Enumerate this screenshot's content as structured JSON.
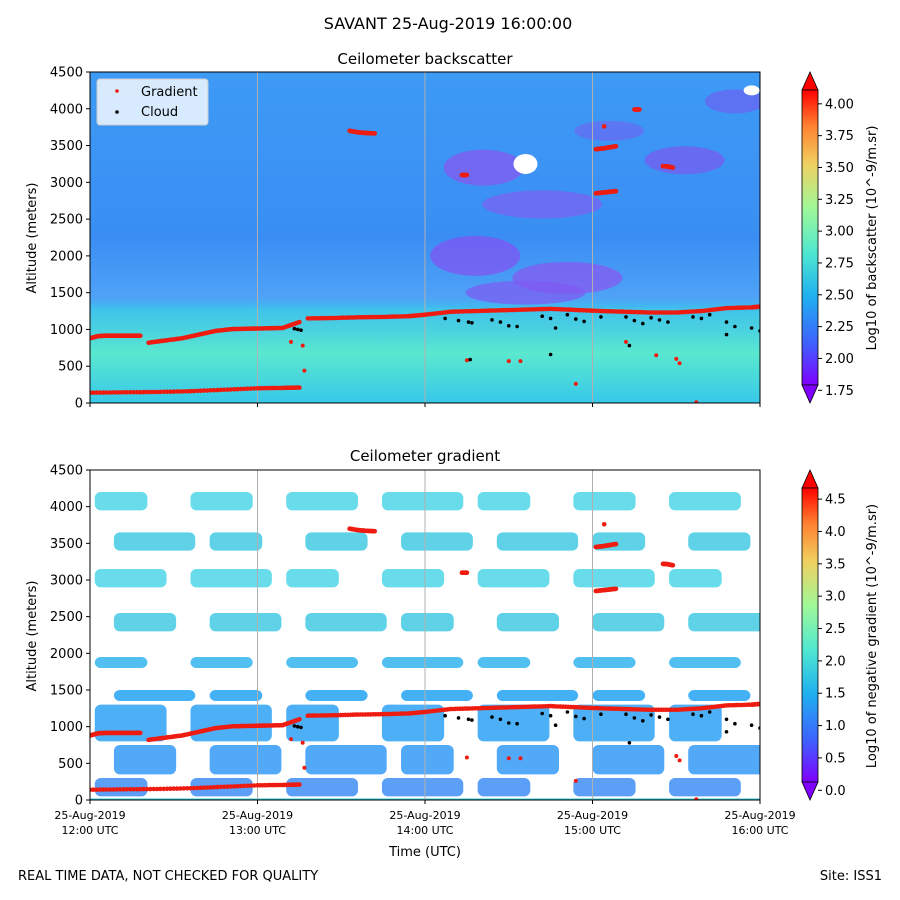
{
  "suptitle": "SAVANT 25-Aug-2019 16:00:00",
  "footer_left": "REAL TIME DATA, NOT CHECKED FOR QUALITY",
  "footer_right": "Site: ISS1",
  "x_axis": {
    "label": "Time (UTC)",
    "tick_dates": [
      "25-Aug-2019",
      "25-Aug-2019",
      "25-Aug-2019",
      "25-Aug-2019",
      "25-Aug-2019"
    ],
    "tick_times": [
      "12:00 UTC",
      "13:00 UTC",
      "14:00 UTC",
      "15:00 UTC",
      "16:00 UTC"
    ],
    "range_hours": [
      12,
      16
    ]
  },
  "legend": {
    "placement": "upper-left",
    "gradient": "Gradient",
    "cloud": "Cloud"
  },
  "colors": {
    "gradient_marker": "#ee1c10",
    "cloud_marker": "#000000",
    "background_field": "#3bb2f0",
    "colormap": [
      "#7f00ff",
      "#3f60ff",
      "#1fb0f0",
      "#50e8d0",
      "#a0f898",
      "#f0d060",
      "#ff8030",
      "#ff0000"
    ]
  },
  "chart_data": [
    {
      "type": "heatmap",
      "title": "Ceilometer backscatter",
      "ylabel": "Altitude (meters)",
      "ylim": [
        0,
        4500
      ],
      "yticks": [
        "0",
        "500",
        "1000",
        "1500",
        "2000",
        "2500",
        "3000",
        "3500",
        "4000",
        "4500"
      ],
      "colorbar": {
        "label": "Log10 of backscatter (10^-9/m.sr)",
        "ticks": [
          "1.75",
          "2.00",
          "2.25",
          "2.50",
          "2.75",
          "3.00",
          "3.25",
          "3.50",
          "3.75",
          "4.00"
        ],
        "range": [
          1.65,
          4.25
        ]
      },
      "gradient_series": [
        {
          "t": [
            12.0,
            12.05,
            12.1,
            12.15,
            12.2,
            12.25,
            12.3
          ],
          "alt": [
            880,
            910,
            915,
            915,
            915,
            915,
            915
          ]
        },
        {
          "t": [
            12.35,
            12.45,
            12.55,
            12.65,
            12.75,
            12.85,
            12.95,
            13.05,
            13.15,
            13.25
          ],
          "alt": [
            820,
            850,
            880,
            930,
            980,
            1005,
            1010,
            1015,
            1020,
            1100
          ]
        },
        {
          "t": [
            13.3,
            13.45,
            13.6,
            13.75,
            13.9,
            14.0,
            14.15,
            14.3,
            14.45,
            14.6,
            14.75,
            14.9,
            15.05,
            15.2,
            15.35,
            15.5,
            15.65,
            15.8,
            15.95,
            16.0
          ],
          "alt": [
            1150,
            1155,
            1165,
            1170,
            1180,
            1200,
            1240,
            1250,
            1260,
            1270,
            1280,
            1265,
            1250,
            1240,
            1230,
            1230,
            1250,
            1290,
            1300,
            1310
          ]
        },
        {
          "t": [
            12.0,
            12.2,
            12.4,
            12.6,
            12.8,
            13.0,
            13.15,
            13.25
          ],
          "alt": [
            140,
            145,
            150,
            160,
            180,
            200,
            205,
            210
          ]
        },
        {
          "t": [
            13.55,
            13.6,
            13.65,
            13.7
          ],
          "alt": [
            3700,
            3680,
            3670,
            3665
          ]
        },
        {
          "t": [
            15.02,
            15.06,
            15.1,
            15.14
          ],
          "alt": [
            3450,
            3460,
            3475,
            3490
          ]
        },
        {
          "t": [
            15.02,
            15.06,
            15.1,
            15.14
          ],
          "alt": [
            2850,
            2860,
            2870,
            2880
          ]
        },
        {
          "t": [
            14.22,
            14.25
          ],
          "alt": [
            3100,
            3100
          ]
        },
        {
          "t": [
            15.42,
            15.45,
            15.48
          ],
          "alt": [
            3220,
            3215,
            3200
          ]
        },
        {
          "t": [
            15.25,
            15.28
          ],
          "alt": [
            3990,
            3990
          ]
        },
        {
          "t": [
            15.07
          ],
          "alt": [
            3760
          ]
        }
      ],
      "gradient_points": {
        "t": [
          13.2,
          13.27,
          13.28,
          14.25,
          14.5,
          14.57,
          14.9,
          15.2,
          15.38,
          15.5,
          15.52,
          15.62
        ],
        "alt": [
          830,
          780,
          440,
          580,
          570,
          570,
          260,
          830,
          650,
          600,
          540,
          10
        ]
      },
      "cloud_points": {
        "t": [
          13.22,
          13.24,
          13.26,
          14.12,
          14.2,
          14.26,
          14.28,
          14.4,
          14.45,
          14.5,
          14.55,
          14.7,
          14.75,
          14.78,
          14.85,
          14.9,
          14.95,
          15.2,
          15.25,
          15.3,
          15.35,
          15.4,
          15.45,
          15.6,
          15.65,
          15.7,
          15.8,
          15.85,
          15.95,
          16.0,
          14.27,
          14.75,
          15.22,
          15.8,
          15.05
        ],
        "alt": [
          1010,
          1000,
          990,
          1150,
          1120,
          1100,
          1090,
          1130,
          1100,
          1050,
          1040,
          1180,
          1150,
          1020,
          1200,
          1140,
          1110,
          1170,
          1120,
          1080,
          1160,
          1130,
          1100,
          1170,
          1150,
          1200,
          1100,
          1040,
          1020,
          980,
          590,
          660,
          780,
          930,
          1170
        ]
      }
    },
    {
      "type": "heatmap",
      "title": "Ceilometer gradient",
      "ylabel": "Altitude (meters)",
      "xlabel": "Time (UTC)",
      "ylim": [
        0,
        4500
      ],
      "yticks": [
        "0",
        "500",
        "1000",
        "1500",
        "2000",
        "2500",
        "3000",
        "3500",
        "4000",
        "4500"
      ],
      "colorbar": {
        "label": "Log10 of negative gradient (10^-9/m.sr)",
        "ticks": [
          "0.0",
          "0.5",
          "1.0",
          "1.5",
          "2.0",
          "2.5",
          "3.0",
          "3.5",
          "4.0",
          "4.5"
        ],
        "range": [
          -0.15,
          4.95
        ]
      },
      "gradient_series": [
        {
          "t": [
            12.0,
            12.05,
            12.1,
            12.15,
            12.2,
            12.25,
            12.3
          ],
          "alt": [
            880,
            910,
            915,
            915,
            915,
            915,
            915
          ]
        },
        {
          "t": [
            12.35,
            12.45,
            12.55,
            12.65,
            12.75,
            12.85,
            12.95,
            13.05,
            13.15,
            13.25
          ],
          "alt": [
            820,
            850,
            880,
            930,
            980,
            1005,
            1010,
            1015,
            1020,
            1100
          ]
        },
        {
          "t": [
            13.3,
            13.45,
            13.6,
            13.75,
            13.9,
            14.0,
            14.15,
            14.3,
            14.45,
            14.6,
            14.75,
            14.9,
            15.05,
            15.2,
            15.35,
            15.5,
            15.65,
            15.8,
            15.95,
            16.0
          ],
          "alt": [
            1150,
            1155,
            1165,
            1170,
            1180,
            1200,
            1240,
            1250,
            1260,
            1270,
            1280,
            1265,
            1250,
            1240,
            1230,
            1230,
            1250,
            1290,
            1300,
            1310
          ]
        },
        {
          "t": [
            12.0,
            12.2,
            12.4,
            12.6,
            12.8,
            13.0,
            13.15,
            13.25
          ],
          "alt": [
            140,
            145,
            150,
            160,
            180,
            200,
            205,
            210
          ]
        },
        {
          "t": [
            13.55,
            13.6,
            13.65,
            13.7
          ],
          "alt": [
            3700,
            3680,
            3670,
            3665
          ]
        },
        {
          "t": [
            15.02,
            15.06,
            15.1,
            15.14
          ],
          "alt": [
            3450,
            3460,
            3475,
            3490
          ]
        },
        {
          "t": [
            15.02,
            15.06,
            15.1,
            15.14
          ],
          "alt": [
            2850,
            2860,
            2870,
            2880
          ]
        },
        {
          "t": [
            14.22,
            14.25
          ],
          "alt": [
            3100,
            3100
          ]
        },
        {
          "t": [
            15.42,
            15.45,
            15.48
          ],
          "alt": [
            3220,
            3215,
            3200
          ]
        },
        {
          "t": [
            15.07
          ],
          "alt": [
            3760
          ]
        }
      ],
      "gradient_points": {
        "t": [
          13.2,
          13.27,
          13.28,
          14.25,
          14.5,
          14.57,
          14.9,
          15.5,
          15.52,
          15.62
        ],
        "alt": [
          830,
          780,
          440,
          580,
          570,
          570,
          260,
          600,
          540,
          10
        ]
      },
      "cloud_points": {
        "t": [
          13.22,
          13.24,
          13.26,
          14.12,
          14.2,
          14.26,
          14.28,
          14.4,
          14.45,
          14.5,
          14.55,
          14.7,
          14.75,
          14.78,
          14.85,
          14.9,
          14.95,
          15.2,
          15.25,
          15.3,
          15.35,
          15.4,
          15.45,
          15.6,
          15.65,
          15.7,
          15.8,
          15.85,
          15.95,
          16.0,
          15.22,
          15.8,
          15.05
        ],
        "alt": [
          1010,
          1000,
          990,
          1150,
          1120,
          1100,
          1090,
          1130,
          1100,
          1050,
          1040,
          1180,
          1150,
          1020,
          1200,
          1140,
          1110,
          1170,
          1120,
          1080,
          1160,
          1130,
          1100,
          1170,
          1150,
          1200,
          1100,
          1040,
          1020,
          980,
          780,
          930,
          1170
        ]
      },
      "bands": [
        {
          "alt_from": 3950,
          "alt_to": 4200
        },
        {
          "alt_from": 3400,
          "alt_to": 3650
        },
        {
          "alt_from": 2900,
          "alt_to": 3150
        },
        {
          "alt_from": 2300,
          "alt_to": 2550
        },
        {
          "alt_from": 1800,
          "alt_to": 1950
        },
        {
          "alt_from": 1350,
          "alt_to": 1500
        },
        {
          "alt_from": 800,
          "alt_to": 1300
        },
        {
          "alt_from": 350,
          "alt_to": 750
        },
        {
          "alt_from": 50,
          "alt_to": 300
        }
      ]
    }
  ]
}
